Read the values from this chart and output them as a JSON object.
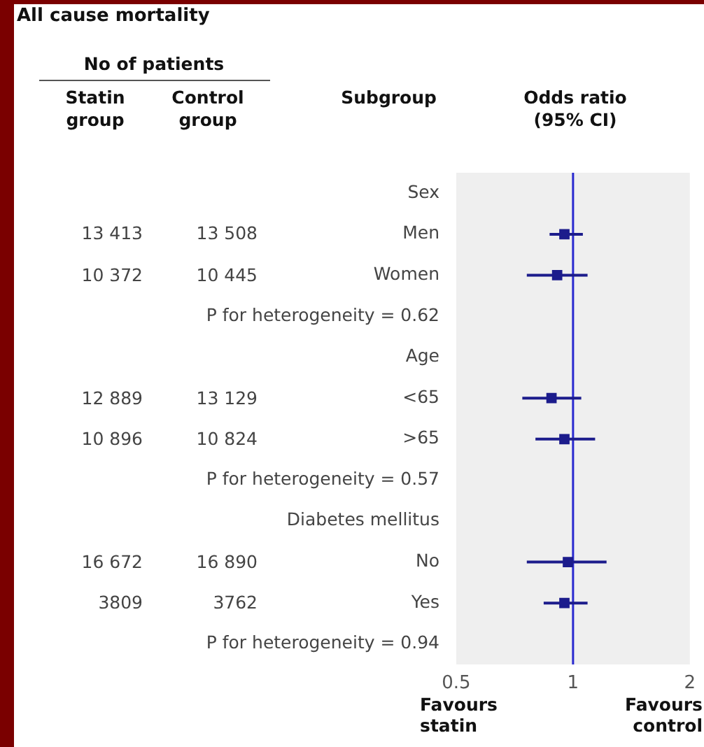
{
  "chart_data": {
    "type": "scatter",
    "orientation": "horizontal",
    "title": "All cause mortality",
    "xlabel": "Odds ratio (95% CI)",
    "categories": [
      "Sex",
      "Men",
      "Women",
      "P for heterogeneity = 0.62",
      "Age",
      "<65",
      ">65",
      "P for heterogeneity = 0.57",
      "Diabetes mellitus",
      "No",
      "Yes",
      "P for heterogeneity = 0.94"
    ],
    "values": [
      null,
      0.95,
      0.91,
      null,
      null,
      0.88,
      0.95,
      null,
      null,
      0.97,
      0.95,
      null
    ],
    "errors": [
      null,
      [
        0.87,
        1.06
      ],
      [
        0.76,
        1.09
      ],
      null,
      null,
      [
        0.74,
        1.05
      ],
      [
        0.8,
        1.14
      ],
      null,
      null,
      [
        0.76,
        1.22
      ],
      [
        0.84,
        1.09
      ],
      null
    ],
    "color": "#1c1c8c",
    "marker": "square",
    "log": "x",
    "grid": false,
    "xlim": [
      0.5,
      2
    ],
    "xticks": [
      0.5,
      1,
      2
    ],
    "ref_lines": [
      {
        "axis": "x",
        "value": 1,
        "color": "#2a2ad0"
      }
    ],
    "annotations": [
      "No of patients",
      "Statin group",
      "Control group",
      "Favours statin",
      "Favours control",
      "Subgroup",
      "13 413",
      "13 508",
      "10 372",
      "10 445",
      "12 889",
      "13 129",
      "10 896",
      "10 824",
      "16 672",
      "16 890",
      "3809",
      "3762"
    ]
  }
}
